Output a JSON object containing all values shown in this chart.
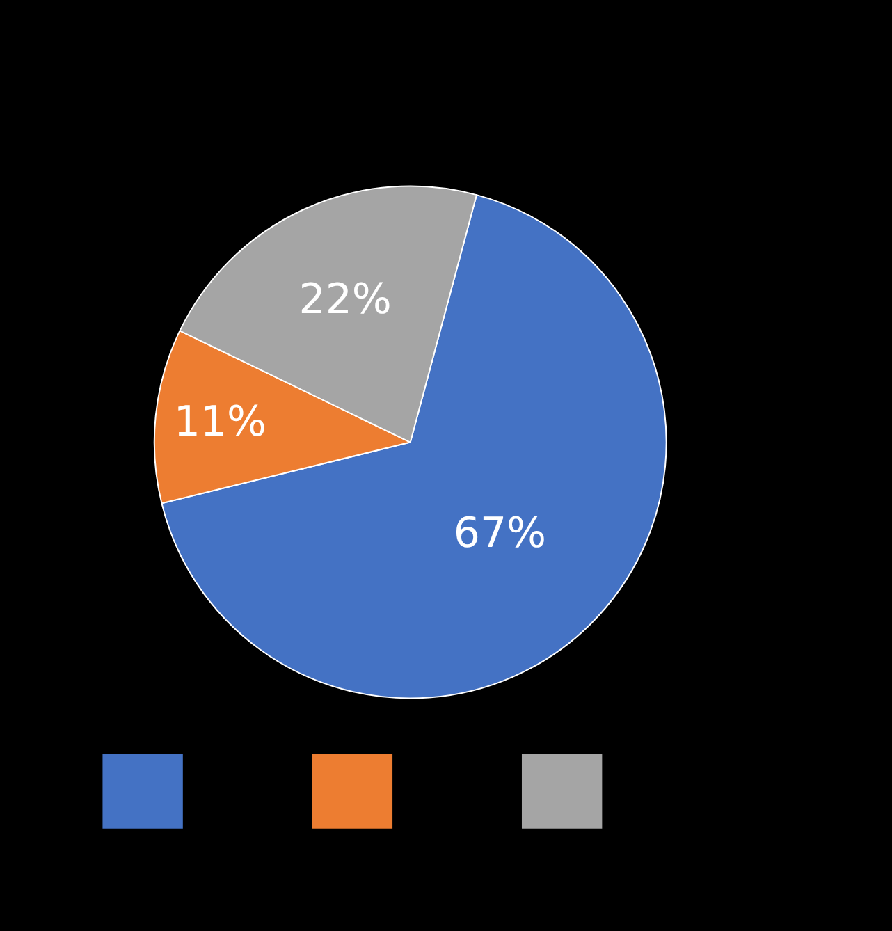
{
  "chart_data": {
    "type": "pie",
    "categories": [
      null,
      null,
      null
    ],
    "values": [
      67,
      11,
      22
    ],
    "colors": [
      "#4472c4",
      "#ed7d31",
      "#a5a5a5"
    ],
    "data_labels": true,
    "value_labels": [
      "67%",
      "11%",
      "22%"
    ]
  }
}
